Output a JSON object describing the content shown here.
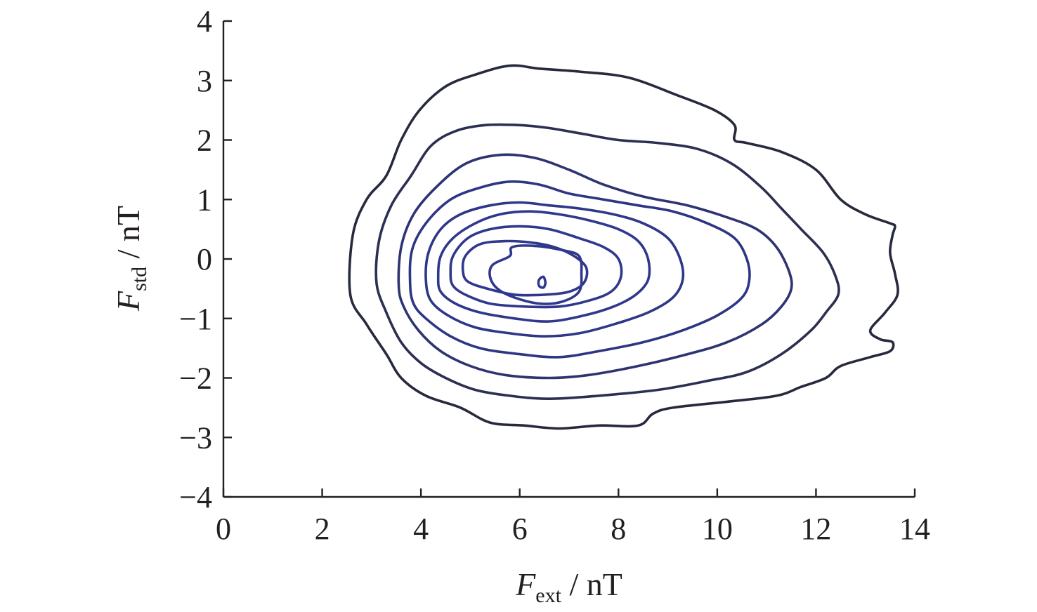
{
  "chart_data": {
    "type": "contour",
    "title": "",
    "xlabel": {
      "main": "F",
      "sub": "ext",
      "unit": " / nT"
    },
    "ylabel": {
      "main": "F",
      "sub": "std",
      "unit": " / nT"
    },
    "xlim": [
      0,
      14
    ],
    "ylim": [
      -4,
      4
    ],
    "x_ticks": [
      0,
      2,
      4,
      6,
      8,
      10,
      12,
      14
    ],
    "y_ticks": [
      4,
      3,
      2,
      1,
      0,
      -1,
      -2,
      -3,
      -4
    ],
    "x_tick_labels": [
      "0",
      "2",
      "4",
      "6",
      "8",
      "10",
      "12",
      "14"
    ],
    "y_tick_labels": [
      "4",
      "3",
      "2",
      "1",
      "0",
      "−1",
      "−2",
      "−3",
      "−4"
    ],
    "grid": false,
    "legend": "none",
    "colors": {
      "outer": "#272a3c",
      "inner": "#2e3a8c",
      "axis": "#231f20"
    },
    "contours": [
      {
        "level": 1,
        "color": "#272a3c",
        "points": [
          [
            2.57,
            -0.6
          ],
          [
            2.62,
            0.4
          ],
          [
            2.9,
            1.0
          ],
          [
            3.3,
            1.4
          ],
          [
            3.6,
            2.0
          ],
          [
            3.97,
            2.5
          ],
          [
            4.5,
            2.9
          ],
          [
            5.1,
            3.1
          ],
          [
            5.8,
            3.25
          ],
          [
            6.4,
            3.2
          ],
          [
            7.2,
            3.15
          ],
          [
            8.2,
            3.05
          ],
          [
            9.2,
            2.75
          ],
          [
            9.95,
            2.5
          ],
          [
            10.35,
            2.25
          ],
          [
            10.35,
            2.0
          ],
          [
            10.6,
            1.95
          ],
          [
            11.3,
            1.8
          ],
          [
            12.0,
            1.5
          ],
          [
            12.5,
            1.0
          ],
          [
            13.0,
            0.75
          ],
          [
            13.5,
            0.6
          ],
          [
            13.6,
            0.55
          ],
          [
            13.55,
            0.4
          ],
          [
            13.5,
            0.1
          ],
          [
            13.6,
            -0.25
          ],
          [
            13.65,
            -0.6
          ],
          [
            13.4,
            -0.9
          ],
          [
            13.1,
            -1.2
          ],
          [
            13.3,
            -1.35
          ],
          [
            13.55,
            -1.4
          ],
          [
            13.5,
            -1.55
          ],
          [
            13.1,
            -1.65
          ],
          [
            12.5,
            -1.8
          ],
          [
            12.2,
            -2.0
          ],
          [
            11.7,
            -2.15
          ],
          [
            11.2,
            -2.3
          ],
          [
            10.2,
            -2.4
          ],
          [
            9.1,
            -2.5
          ],
          [
            8.7,
            -2.6
          ],
          [
            8.4,
            -2.8
          ],
          [
            7.6,
            -2.8
          ],
          [
            6.8,
            -2.85
          ],
          [
            6.1,
            -2.8
          ],
          [
            5.4,
            -2.75
          ],
          [
            4.8,
            -2.5
          ],
          [
            4.1,
            -2.3
          ],
          [
            3.6,
            -2.0
          ],
          [
            3.3,
            -1.6
          ],
          [
            2.9,
            -1.1
          ]
        ]
      },
      {
        "level": 2,
        "color": "#2c2f52",
        "points": [
          [
            3.1,
            -0.4
          ],
          [
            3.15,
            0.3
          ],
          [
            3.4,
            0.9
          ],
          [
            3.8,
            1.4
          ],
          [
            4.2,
            1.9
          ],
          [
            4.7,
            2.15
          ],
          [
            5.3,
            2.25
          ],
          [
            6.0,
            2.25
          ],
          [
            6.6,
            2.2
          ],
          [
            7.3,
            2.1
          ],
          [
            8.0,
            2.0
          ],
          [
            8.8,
            1.95
          ],
          [
            9.6,
            1.85
          ],
          [
            10.3,
            1.6
          ],
          [
            10.9,
            1.2
          ],
          [
            11.3,
            0.85
          ],
          [
            11.7,
            0.5
          ],
          [
            12.15,
            0.1
          ],
          [
            12.4,
            -0.3
          ],
          [
            12.45,
            -0.6
          ],
          [
            12.2,
            -0.9
          ],
          [
            11.9,
            -1.2
          ],
          [
            11.3,
            -1.6
          ],
          [
            10.6,
            -1.9
          ],
          [
            9.8,
            -2.05
          ],
          [
            8.8,
            -2.2
          ],
          [
            7.6,
            -2.3
          ],
          [
            6.6,
            -2.35
          ],
          [
            5.8,
            -2.3
          ],
          [
            5.1,
            -2.2
          ],
          [
            4.5,
            -2.0
          ],
          [
            4.0,
            -1.75
          ],
          [
            3.6,
            -1.4
          ],
          [
            3.3,
            -0.9
          ]
        ]
      },
      {
        "level": 3,
        "color": "#2e3472",
        "points": [
          [
            3.55,
            -0.45
          ],
          [
            3.6,
            0.2
          ],
          [
            3.85,
            0.75
          ],
          [
            4.3,
            1.2
          ],
          [
            4.9,
            1.6
          ],
          [
            5.6,
            1.75
          ],
          [
            6.3,
            1.7
          ],
          [
            7.0,
            1.5
          ],
          [
            7.7,
            1.25
          ],
          [
            8.5,
            1.05
          ],
          [
            9.4,
            0.9
          ],
          [
            10.2,
            0.7
          ],
          [
            10.8,
            0.5
          ],
          [
            11.2,
            0.2
          ],
          [
            11.45,
            -0.2
          ],
          [
            11.5,
            -0.5
          ],
          [
            11.3,
            -0.8
          ],
          [
            10.9,
            -1.1
          ],
          [
            10.2,
            -1.4
          ],
          [
            9.4,
            -1.6
          ],
          [
            8.4,
            -1.8
          ],
          [
            7.4,
            -1.95
          ],
          [
            6.6,
            -2.0
          ],
          [
            5.7,
            -1.95
          ],
          [
            5.0,
            -1.8
          ],
          [
            4.4,
            -1.55
          ],
          [
            3.95,
            -1.2
          ],
          [
            3.65,
            -0.8
          ]
        ]
      },
      {
        "level": 4,
        "color": "#2e3684",
        "points": [
          [
            3.78,
            -0.4
          ],
          [
            3.82,
            0.15
          ],
          [
            4.1,
            0.6
          ],
          [
            4.6,
            1.0
          ],
          [
            5.2,
            1.2
          ],
          [
            5.8,
            1.3
          ],
          [
            6.4,
            1.25
          ],
          [
            7.0,
            1.1
          ],
          [
            7.7,
            1.0
          ],
          [
            8.4,
            0.9
          ],
          [
            9.1,
            0.8
          ],
          [
            9.8,
            0.6
          ],
          [
            10.35,
            0.35
          ],
          [
            10.6,
            0.0
          ],
          [
            10.65,
            -0.35
          ],
          [
            10.5,
            -0.65
          ],
          [
            10.0,
            -0.95
          ],
          [
            9.3,
            -1.2
          ],
          [
            8.5,
            -1.4
          ],
          [
            7.6,
            -1.55
          ],
          [
            6.8,
            -1.65
          ],
          [
            6.0,
            -1.6
          ],
          [
            5.2,
            -1.5
          ],
          [
            4.6,
            -1.3
          ],
          [
            4.1,
            -1.0
          ],
          [
            3.85,
            -0.75
          ]
        ]
      },
      {
        "level": 5,
        "color": "#2e3788",
        "points": [
          [
            4.1,
            -0.35
          ],
          [
            4.15,
            0.1
          ],
          [
            4.4,
            0.5
          ],
          [
            4.8,
            0.75
          ],
          [
            5.4,
            0.9
          ],
          [
            6.0,
            0.95
          ],
          [
            6.6,
            0.9
          ],
          [
            7.2,
            0.85
          ],
          [
            7.9,
            0.75
          ],
          [
            8.5,
            0.6
          ],
          [
            9.0,
            0.35
          ],
          [
            9.25,
            0.0
          ],
          [
            9.3,
            -0.35
          ],
          [
            9.1,
            -0.65
          ],
          [
            8.6,
            -0.9
          ],
          [
            7.9,
            -1.1
          ],
          [
            7.2,
            -1.25
          ],
          [
            6.5,
            -1.3
          ],
          [
            5.8,
            -1.25
          ],
          [
            5.1,
            -1.15
          ],
          [
            4.55,
            -0.95
          ],
          [
            4.2,
            -0.7
          ]
        ]
      },
      {
        "level": 6,
        "color": "#2f388c",
        "points": [
          [
            4.35,
            -0.3
          ],
          [
            4.4,
            0.05
          ],
          [
            4.65,
            0.35
          ],
          [
            5.1,
            0.6
          ],
          [
            5.6,
            0.75
          ],
          [
            6.2,
            0.8
          ],
          [
            6.8,
            0.75
          ],
          [
            7.4,
            0.65
          ],
          [
            8.0,
            0.5
          ],
          [
            8.4,
            0.3
          ],
          [
            8.6,
            0.0
          ],
          [
            8.6,
            -0.35
          ],
          [
            8.35,
            -0.6
          ],
          [
            7.9,
            -0.8
          ],
          [
            7.3,
            -0.95
          ],
          [
            6.6,
            -1.05
          ],
          [
            5.9,
            -1.0
          ],
          [
            5.2,
            -0.9
          ],
          [
            4.7,
            -0.75
          ],
          [
            4.4,
            -0.55
          ]
        ]
      },
      {
        "level": 7,
        "color": "#2f388c",
        "points": [
          [
            4.6,
            -0.25
          ],
          [
            4.65,
            0.05
          ],
          [
            4.95,
            0.35
          ],
          [
            5.4,
            0.5
          ],
          [
            6.0,
            0.55
          ],
          [
            6.6,
            0.5
          ],
          [
            7.2,
            0.35
          ],
          [
            7.7,
            0.2
          ],
          [
            8.0,
            0.0
          ],
          [
            8.05,
            -0.3
          ],
          [
            7.85,
            -0.55
          ],
          [
            7.4,
            -0.7
          ],
          [
            6.8,
            -0.8
          ],
          [
            6.1,
            -0.8
          ],
          [
            5.4,
            -0.75
          ],
          [
            4.9,
            -0.6
          ],
          [
            4.65,
            -0.45
          ]
        ]
      },
      {
        "level": 8,
        "color": "#2f388c",
        "points": [
          [
            4.85,
            -0.2
          ],
          [
            4.9,
            0.05
          ],
          [
            5.2,
            0.25
          ],
          [
            5.7,
            0.3
          ],
          [
            6.2,
            0.28
          ],
          [
            6.7,
            0.2
          ],
          [
            7.1,
            0.05
          ],
          [
            7.35,
            -0.15
          ],
          [
            7.3,
            -0.4
          ],
          [
            7.0,
            -0.55
          ],
          [
            6.5,
            -0.6
          ],
          [
            5.9,
            -0.6
          ],
          [
            5.35,
            -0.5
          ],
          [
            4.95,
            -0.38
          ]
        ]
      },
      {
        "level": 9,
        "color": "#2f388c",
        "points": [
          [
            5.4,
            -0.3
          ],
          [
            5.45,
            -0.1
          ],
          [
            5.8,
            0.05
          ],
          [
            5.85,
            0.2
          ],
          [
            6.3,
            0.22
          ],
          [
            6.85,
            0.15
          ],
          [
            7.2,
            0.05
          ],
          [
            7.25,
            -0.25
          ],
          [
            7.2,
            -0.55
          ],
          [
            6.85,
            -0.72
          ],
          [
            6.4,
            -0.75
          ],
          [
            5.9,
            -0.65
          ],
          [
            5.55,
            -0.5
          ]
        ]
      },
      {
        "level": 10,
        "color": "#2f388c",
        "points": [
          [
            6.4,
            -0.34
          ],
          [
            6.48,
            -0.3
          ],
          [
            6.52,
            -0.4
          ],
          [
            6.48,
            -0.48
          ],
          [
            6.4,
            -0.46
          ],
          [
            6.38,
            -0.4
          ]
        ]
      }
    ]
  }
}
